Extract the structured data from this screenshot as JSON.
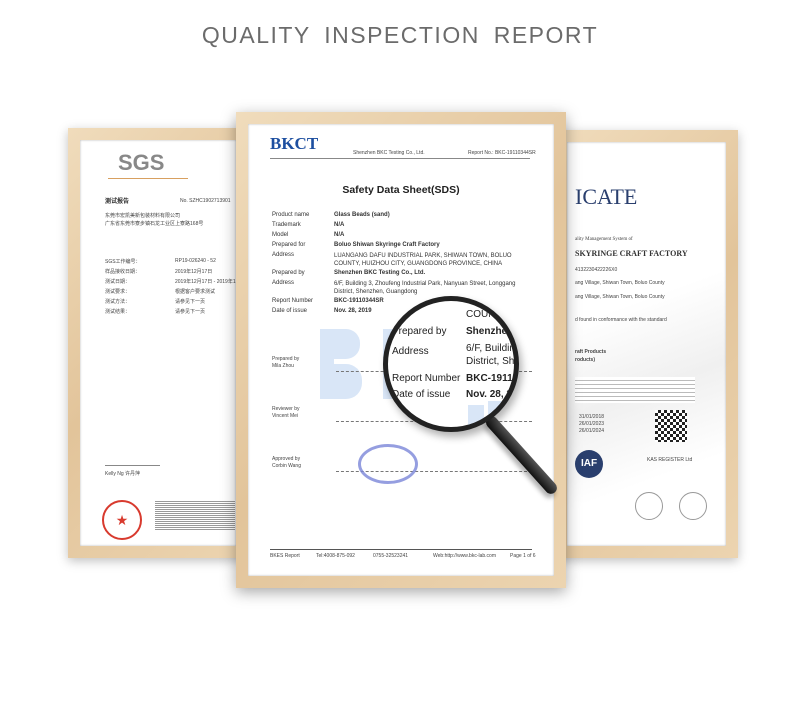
{
  "header": {
    "title": "QUALITY INSPECTION REPORT"
  },
  "left_certificate": {
    "logo": "SGS",
    "heading": "测试报告",
    "report_no": "No. SZHC1902713901",
    "lines": [
      "东莞市宏凯美新包装材料有限公司",
      "广东省东莞市寮步镇石龙工业区上寮路168号"
    ],
    "fields": [
      [
        "SGS工作编号：",
        "RP19-026240 - 52"
      ],
      [
        "样品接收日期：",
        "2019年12月17日"
      ],
      [
        "测试日期：",
        "2019年12月17日 - 2019年1"
      ],
      [
        "测试要求：",
        "根据客户要求测试"
      ],
      [
        "测试方法：",
        "请参见下一页"
      ],
      [
        "测试结果：",
        "请参见下一页"
      ]
    ],
    "signer": "Kelly Ng 许丹萍",
    "seal_color": "#d83a2e"
  },
  "center_certificate": {
    "logo": "BKCT",
    "company": "Shenzhen BKC Testing Co., Ltd.",
    "report_no_header": "Report No.: BKC-19110344SR",
    "title": "Safety Data Sheet(SDS)",
    "fields": [
      {
        "label": "Product name",
        "value": "Glass Beads (sand)"
      },
      {
        "label": "Trademark",
        "value": "N/A"
      },
      {
        "label": "Model",
        "value": "N/A"
      },
      {
        "label": "Prepared for",
        "value": "Boluo Shiwan Skyringe Craft Factory"
      },
      {
        "label": "Address",
        "value": "LUANGANG DAFU INDUSTRIAL PARK, SHIWAN TOWN, BOLUO COUNTY, HUIZHOU CITY, GUANGDONG PROVINCE, CHINA"
      },
      {
        "label": "Prepared by",
        "value": "Shenzhen BKC Testing Co., Ltd."
      },
      {
        "label": "Address",
        "value": "6/F, Building 3, Zhoufeng Industrial Park, Nanyuan Street, Longgang District, Shenzhen, Guangdong"
      },
      {
        "label": "Report Number",
        "value": "BKC-19110344SR"
      },
      {
        "label": "Date of issue",
        "value": "Nov. 28, 2019"
      }
    ],
    "signatures": [
      {
        "role": "Prepared by",
        "name": "Mila Zhou"
      },
      {
        "role": "Reviewer by",
        "name": "Vincent Mei"
      },
      {
        "role": "Approved by",
        "name": "Corbin Wang"
      }
    ],
    "footer": [
      "BKES Report",
      "Tel:4008-875-092",
      "0755-32523241",
      "Web:http://www.bkc-lab.com",
      "Page 1 of 6"
    ],
    "magnified": [
      "COUNTY",
      "Prepared by",
      "Shenzhen B",
      "Address",
      "6/F, Building 3",
      "District, Shenzh",
      "Report Number",
      "BKC-1911034",
      "Date of issue",
      "Nov. 28, 2019"
    ]
  },
  "right_certificate": {
    "title_partial": "ICATE",
    "system": "ality Management System of",
    "company": "SKYRINGE CRAFT FACTORY",
    "code": "4132230422226X0",
    "addresses": [
      "ang Village, Shiwan Town, Boluo County",
      "ang Village, Shiwan Town, Boluo County"
    ],
    "conformance": "d found in conformance with the standard",
    "scope": [
      "raft Products",
      "roducts)"
    ],
    "dates": [
      "31/01/2018",
      "26/01/2023",
      "26/01/2024"
    ],
    "badge": "IAF",
    "accr": "KAS REGISTER Ltd",
    "brand_color": "#2a3f6e"
  }
}
